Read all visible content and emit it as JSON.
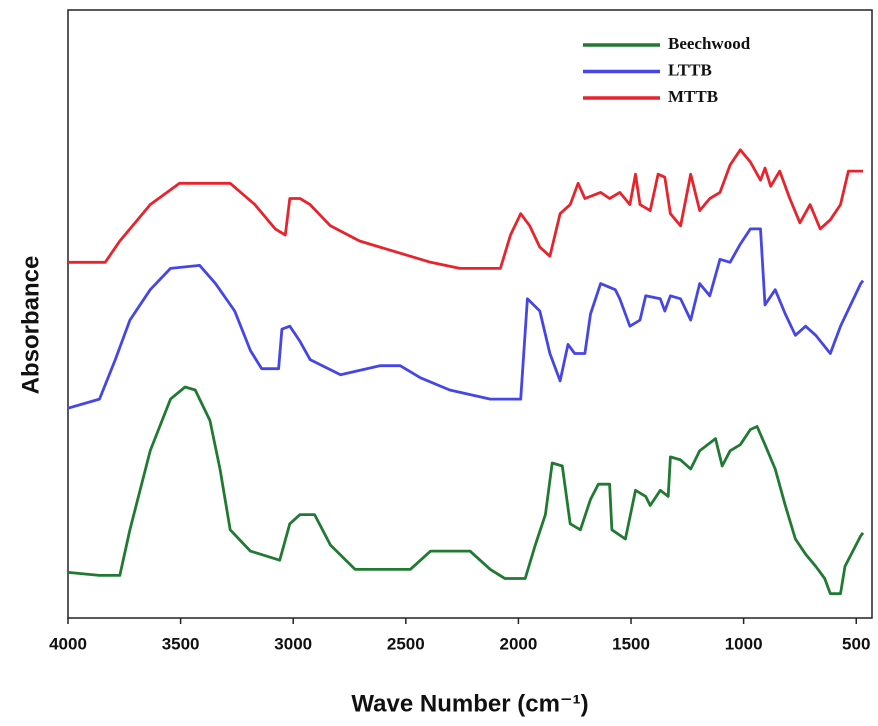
{
  "chart_data": {
    "type": "line",
    "x_label": "Wave Number (cm⁻¹)",
    "y_label": "Absorbance",
    "xlim": [
      4000,
      430
    ],
    "xticks": [
      4000,
      3500,
      3000,
      2500,
      2000,
      1500,
      1000,
      500
    ],
    "ylim": [
      0,
      100
    ],
    "legend": "upper right",
    "series": [
      {
        "name": "Beechwood",
        "color": "#217a32",
        "x": [
          4000,
          3860,
          3770,
          3725,
          3635,
          3545,
          3480,
          3435,
          3370,
          3325,
          3280,
          3190,
          3060,
          3015,
          2970,
          2905,
          2835,
          2725,
          2480,
          2390,
          2215,
          2125,
          2060,
          1970,
          1925,
          1880,
          1850,
          1805,
          1770,
          1725,
          1680,
          1645,
          1595,
          1585,
          1525,
          1480,
          1435,
          1415,
          1370,
          1335,
          1325,
          1280,
          1235,
          1195,
          1125,
          1095,
          1060,
          1015,
          970,
          940,
          905,
          860,
          815,
          770,
          725,
          680,
          640,
          615,
          570,
          550,
          480,
          470
        ],
        "values": [
          7.5,
          7,
          7,
          14.5,
          27.5,
          36,
          38,
          37.5,
          32.5,
          24.5,
          14.5,
          11,
          9.5,
          15.5,
          17,
          17,
          12,
          8,
          8,
          11,
          11,
          8,
          6.5,
          6.5,
          12,
          17,
          25.5,
          25,
          15.5,
          14.5,
          19.5,
          22,
          22,
          14.5,
          13,
          21,
          20,
          18.5,
          21,
          20,
          26.5,
          26,
          24.5,
          27.5,
          29.5,
          25,
          27.5,
          28.5,
          31,
          31.5,
          28.5,
          24.5,
          18.5,
          13,
          10.5,
          8.5,
          6.5,
          4,
          4,
          8.5,
          13.5,
          14
        ]
      },
      {
        "name": "LTTB",
        "color": "#4646e6",
        "x": [
          4000,
          3860,
          3790,
          3725,
          3635,
          3545,
          3415,
          3345,
          3260,
          3190,
          3140,
          3065,
          3050,
          3015,
          2970,
          2925,
          2790,
          2615,
          2525,
          2435,
          2305,
          2125,
          1990,
          1960,
          1905,
          1860,
          1815,
          1780,
          1750,
          1705,
          1680,
          1635,
          1570,
          1550,
          1505,
          1460,
          1435,
          1370,
          1350,
          1325,
          1280,
          1235,
          1195,
          1150,
          1105,
          1060,
          1015,
          970,
          925,
          905,
          860,
          815,
          770,
          725,
          680,
          615,
          570,
          525,
          480,
          470
        ],
        "values": [
          34.5,
          36,
          42.5,
          49,
          54,
          57.5,
          58,
          55,
          50.5,
          44,
          41,
          41,
          47.5,
          48,
          45.5,
          42.5,
          40,
          41.5,
          41.5,
          39.5,
          37.5,
          36,
          36,
          52.5,
          50.5,
          43.5,
          39,
          45,
          43.5,
          43.5,
          50,
          55,
          54,
          52.5,
          48,
          49,
          53,
          52.5,
          50.5,
          53,
          52.5,
          49,
          55,
          53,
          59,
          58.5,
          61.5,
          64,
          64,
          51.5,
          54,
          50,
          46.5,
          48,
          46.5,
          43.5,
          48,
          51.5,
          55,
          55.5
        ]
      },
      {
        "name": "MTTB",
        "color": "#e8232b",
        "x": [
          4000,
          3835,
          3770,
          3635,
          3505,
          3280,
          3170,
          3080,
          3035,
          3015,
          2970,
          2925,
          2835,
          2705,
          2525,
          2390,
          2260,
          2080,
          2035,
          1990,
          1950,
          1905,
          1860,
          1815,
          1770,
          1735,
          1705,
          1635,
          1595,
          1550,
          1505,
          1480,
          1460,
          1415,
          1380,
          1350,
          1325,
          1280,
          1235,
          1195,
          1150,
          1105,
          1060,
          1015,
          970,
          925,
          905,
          880,
          840,
          795,
          750,
          705,
          660,
          615,
          570,
          535,
          470
        ],
        "values": [
          58.5,
          58.5,
          62,
          68,
          71.5,
          71.5,
          68,
          64,
          63,
          69,
          69,
          68,
          64.5,
          62,
          60,
          58.5,
          57.5,
          57.5,
          63,
          66.5,
          64.5,
          61,
          59.5,
          66.5,
          68,
          71.5,
          69,
          70,
          69,
          70,
          68,
          73,
          68,
          67,
          73,
          72.5,
          66.5,
          64.5,
          73,
          67,
          69,
          70,
          74.5,
          77,
          75,
          72,
          74,
          71,
          73.5,
          69,
          65,
          68,
          64,
          65.5,
          68,
          73.5,
          73.5
        ]
      }
    ]
  }
}
